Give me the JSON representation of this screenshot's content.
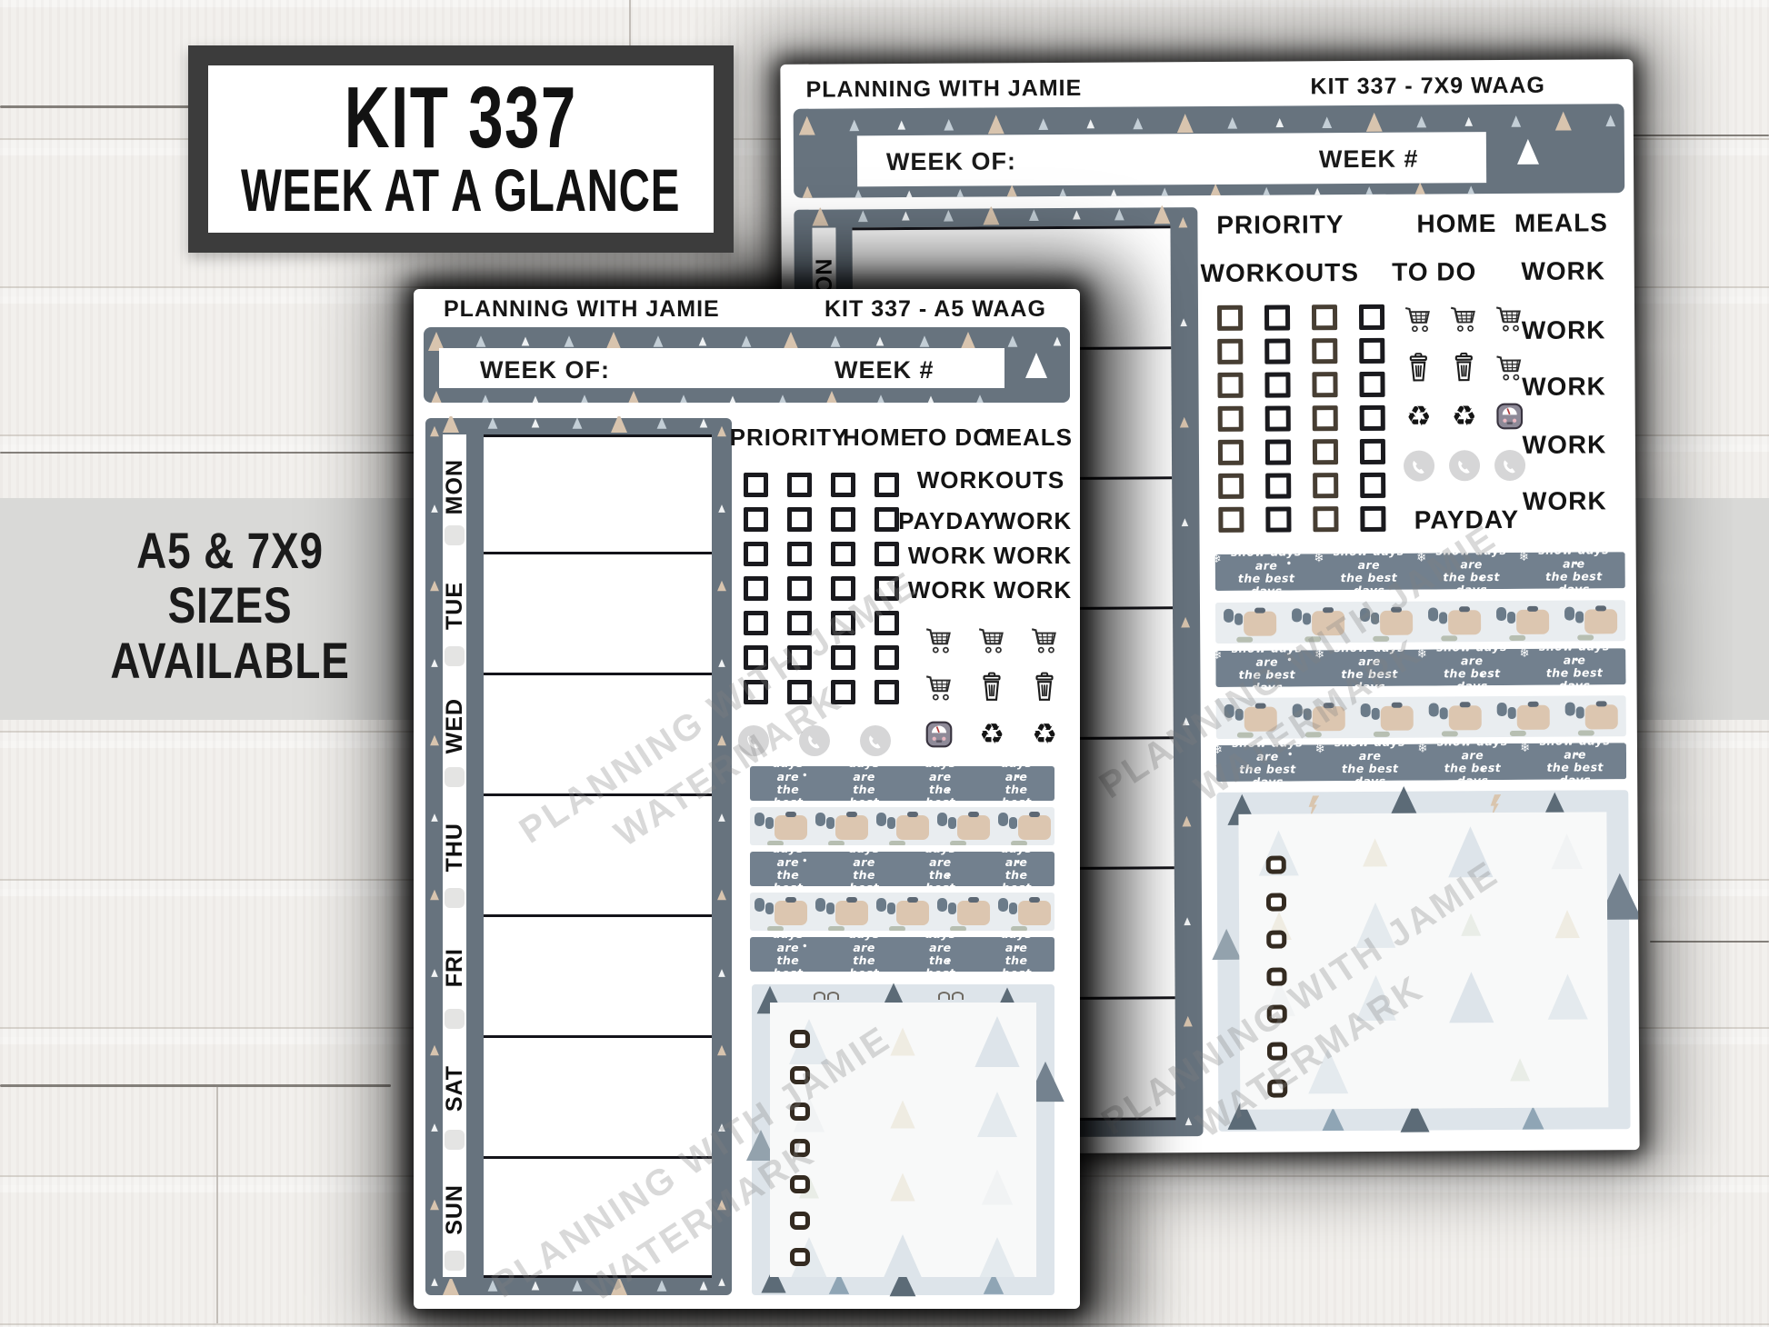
{
  "title_box": {
    "line1": "KIT 337",
    "line2": "WEEK AT A GLANCE"
  },
  "size_banner": {
    "line1": "A5 & 7X9",
    "line2": "SIZES",
    "line3": "AVAILABLE"
  },
  "watermark": {
    "line1": "PLANNING WITH JAMIE",
    "line2": "WATERMARK"
  },
  "washi": {
    "line1": "snow days are",
    "line2": "the best days"
  },
  "sheet_7x9": {
    "brand": "PLANNING WITH JAMIE",
    "kit": "KIT 337 - 7X9 WAAG",
    "week_of": "WEEK OF:",
    "week_num": "WEEK #",
    "first_day": "MON",
    "row1": [
      "PRIORITY",
      "HOME",
      "MEALS"
    ],
    "row2": [
      "WORKOUTS",
      "TO DO",
      "WORK"
    ],
    "work_stack": [
      "WORK",
      "WORK",
      "WORK",
      "WORK"
    ],
    "payday": "PAYDAY"
  },
  "sheet_a5": {
    "brand": "PLANNING WITH JAMIE",
    "kit": "KIT 337 - A5 WAAG",
    "week_of": "WEEK OF:",
    "week_num": "WEEK #",
    "days": [
      "MON",
      "TUE",
      "WED",
      "THU",
      "FRI",
      "SAT",
      "SUN"
    ],
    "row1": [
      "PRIORITY",
      "HOME",
      "TO DO",
      "MEALS"
    ],
    "workouts": "WORKOUTS",
    "text_rows": [
      [
        "PAYDAY",
        "WORK"
      ],
      [
        "WORK",
        "WORK"
      ],
      [
        "WORK",
        "WORK"
      ]
    ]
  },
  "icons": {
    "recycle": "♻",
    "snowflake": "❄",
    "cart": "shopping-cart-icon",
    "trash": "trash-icon",
    "phone": "phone-icon",
    "scale": "weight-scale-icon",
    "tree": "pine-tree-icon",
    "lightning": "lightning-icon",
    "sweater": "sweater-icon"
  },
  "colors": {
    "slate": "#67737e",
    "tan": "#d8c4ae",
    "washi_gray": "#72808e",
    "sweater_bg": "#e9edf0",
    "sticky_border": "#dde4ea",
    "band_gray": "#d9d9d7",
    "frame_dark": "#3c3c3c"
  }
}
